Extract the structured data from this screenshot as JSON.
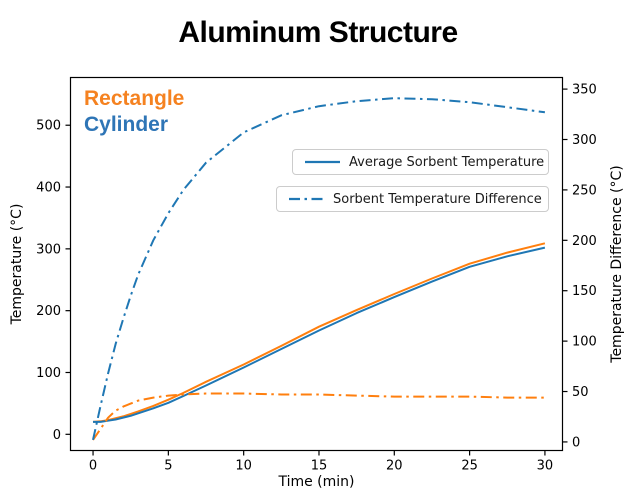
{
  "title": "Aluminum Structure",
  "labels": {
    "rectangle": "Rectangle",
    "cylinder": "Cylinder"
  },
  "legend": [
    {
      "label": "Average Sorbent Temperature",
      "style": "solid"
    },
    {
      "label": "Sorbent Temperature Difference",
      "style": "dashdot"
    }
  ],
  "colors": {
    "blue": "#1f77b4",
    "orange": "#ff7f0e",
    "annotation_orange": "#f58220",
    "annotation_blue": "#2e75b6",
    "spine": "#000000",
    "tick_text": "#000000",
    "legend_border": "#cccccc"
  },
  "chart_data": {
    "type": "line",
    "title": "Aluminum Structure",
    "xlabel": "Time (min)",
    "ylabel_left": "Temperature (°C)",
    "ylabel_right": "Temperature Difference (°C)",
    "x_ticks": [
      0,
      5,
      10,
      15,
      20,
      25,
      30
    ],
    "y_left_ticks": [
      0,
      100,
      200,
      300,
      400,
      500
    ],
    "y_right_ticks": [
      0,
      50,
      100,
      150,
      200,
      250,
      300,
      350
    ],
    "xlim": [
      -1.53,
      31.2
    ],
    "ylim_left": [
      -27,
      578
    ],
    "ylim_right": [
      -9,
      362
    ],
    "grid": false,
    "legend_position": "two stacked boxes, upper center-right",
    "x": [
      0,
      0.5,
      1,
      1.5,
      2,
      2.5,
      3,
      4,
      5,
      6,
      7.5,
      10,
      12.5,
      15,
      17.5,
      20,
      22.5,
      25,
      27.5,
      30
    ],
    "series": [
      {
        "name": "Rectangle Average Sorbent Temperature",
        "axis": "left",
        "color": "#ff7f0e",
        "style": "solid",
        "values": [
          20,
          21,
          23,
          26,
          29,
          33,
          37,
          46,
          56,
          67,
          85,
          113,
          143,
          174,
          201,
          227,
          252,
          276,
          294,
          309
        ]
      },
      {
        "name": "Cylinder Average Sorbent Temperature",
        "axis": "left",
        "color": "#1f77b4",
        "style": "solid",
        "values": [
          20,
          20,
          22,
          24,
          27,
          30,
          34,
          42,
          51,
          62,
          79,
          108,
          138,
          168,
          196,
          222,
          247,
          271,
          288,
          302
        ]
      },
      {
        "name": "Rectangle Sorbent Temperature Difference",
        "axis": "right",
        "color": "#ff7f0e",
        "style": "dashdot",
        "values": [
          2,
          13,
          24,
          31,
          35,
          38,
          41,
          44,
          46,
          47,
          48,
          48,
          47,
          47,
          46,
          45,
          45,
          45,
          44,
          44
        ]
      },
      {
        "name": "Cylinder Sorbent Temperature Difference",
        "axis": "right",
        "color": "#1f77b4",
        "style": "dashdot",
        "values": [
          2,
          36,
          68,
          97,
          122,
          145,
          166,
          200,
          227,
          250,
          277,
          307,
          324,
          333,
          338,
          341,
          340,
          337,
          332,
          327
        ]
      }
    ]
  }
}
